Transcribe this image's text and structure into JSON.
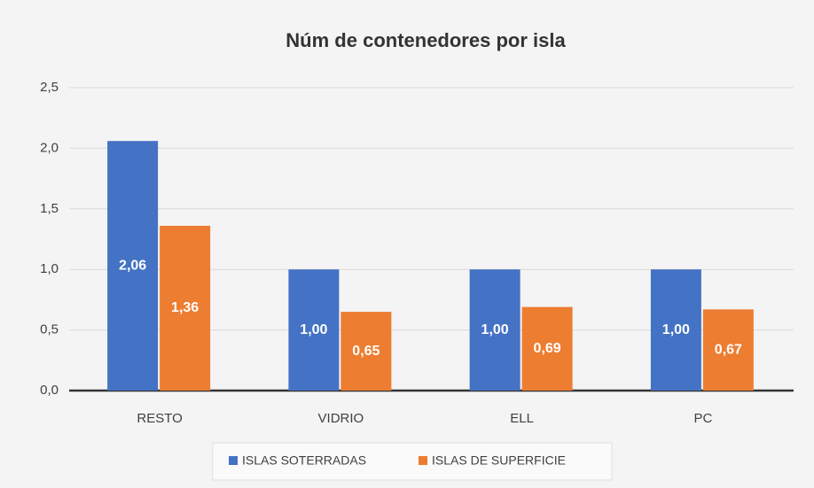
{
  "chart_data": {
    "type": "bar",
    "title": "Núm de contenedores por isla",
    "categories": [
      "RESTO",
      "VIDRIO",
      "ELL",
      "PC"
    ],
    "series": [
      {
        "name": "ISLAS SOTERRADAS",
        "color": "#4472c4",
        "values": [
          2.06,
          1.0,
          1.0,
          1.0
        ],
        "value_labels": [
          "2,06",
          "1,00",
          "1,00",
          "1,00"
        ]
      },
      {
        "name": "ISLAS DE SUPERFICIE",
        "color": "#ed7d31",
        "values": [
          1.36,
          0.65,
          0.69,
          0.67
        ],
        "value_labels": [
          "1,36",
          "0,65",
          "0,69",
          "0,67"
        ]
      }
    ],
    "ylim": [
      0,
      2.5
    ],
    "yticks": [
      {
        "value": 0,
        "label": "0,0"
      },
      {
        "value": 0.5,
        "label": "0,5"
      },
      {
        "value": 1,
        "label": "1,0"
      },
      {
        "value": 1.5,
        "label": "1,5"
      },
      {
        "value": 2,
        "label": "2,0"
      },
      {
        "value": 2.5,
        "label": "2,5"
      }
    ],
    "grid": true,
    "legend": "bottom"
  }
}
